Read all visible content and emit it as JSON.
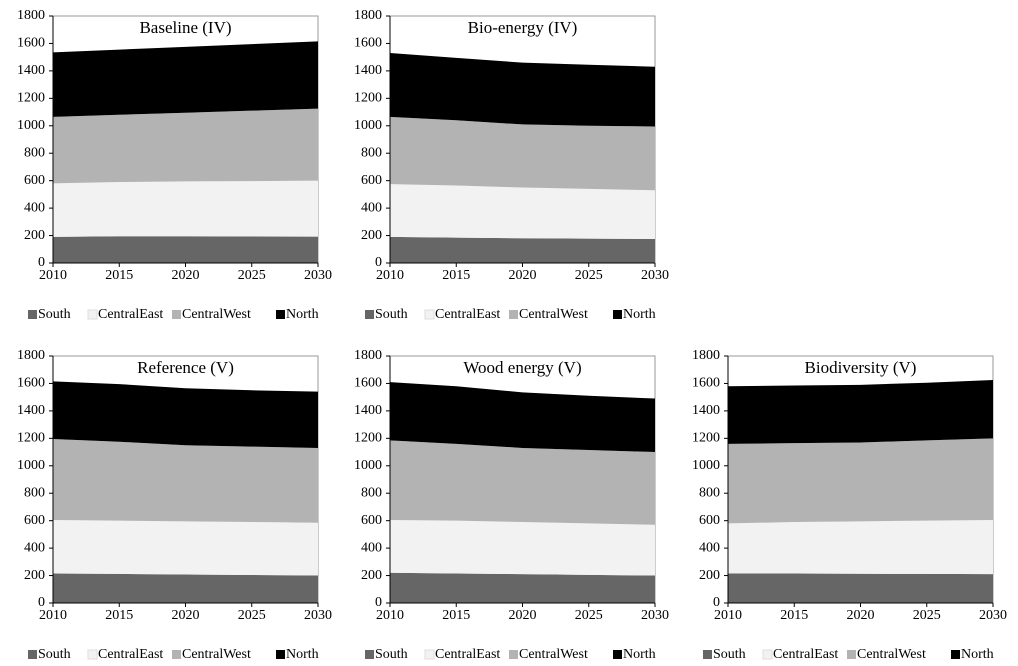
{
  "chart_data": [
    {
      "type": "area",
      "stacked": true,
      "title": "Baseline (IV)",
      "x": [
        2010,
        2015,
        2020,
        2025,
        2030
      ],
      "xlim": [
        2010,
        2030
      ],
      "xticks": [
        2010,
        2015,
        2020,
        2025,
        2030
      ],
      "ylim": [
        0,
        1800
      ],
      "yticks": [
        0,
        200,
        400,
        600,
        800,
        1000,
        1200,
        1400,
        1600,
        1800
      ],
      "grid": false,
      "series": [
        {
          "name": "South",
          "color": "#666666",
          "values": [
            190,
            195,
            195,
            193,
            192
          ]
        },
        {
          "name": "CentralEast",
          "color": "#f2f2f2",
          "values": [
            390,
            395,
            400,
            404,
            408
          ]
        },
        {
          "name": "CentralWest",
          "color": "#b3b3b3",
          "values": [
            485,
            490,
            500,
            513,
            525
          ]
        },
        {
          "name": "North",
          "color": "#000000",
          "values": [
            470,
            475,
            480,
            485,
            490
          ]
        }
      ]
    },
    {
      "type": "area",
      "stacked": true,
      "title": "Bio-energy (IV)",
      "x": [
        2010,
        2015,
        2020,
        2025,
        2030
      ],
      "xlim": [
        2010,
        2030
      ],
      "xticks": [
        2010,
        2015,
        2020,
        2025,
        2030
      ],
      "ylim": [
        0,
        1800
      ],
      "yticks": [
        0,
        200,
        400,
        600,
        800,
        1000,
        1200,
        1400,
        1600,
        1800
      ],
      "grid": false,
      "series": [
        {
          "name": "South",
          "color": "#666666",
          "values": [
            190,
            185,
            180,
            178,
            175
          ]
        },
        {
          "name": "CentralEast",
          "color": "#f2f2f2",
          "values": [
            385,
            380,
            370,
            362,
            355
          ]
        },
        {
          "name": "CentralWest",
          "color": "#b3b3b3",
          "values": [
            490,
            475,
            460,
            460,
            465
          ]
        },
        {
          "name": "North",
          "color": "#000000",
          "values": [
            465,
            455,
            450,
            445,
            435
          ]
        }
      ]
    },
    {
      "type": "area",
      "stacked": true,
      "title": "Reference (V)",
      "x": [
        2010,
        2015,
        2020,
        2025,
        2030
      ],
      "xlim": [
        2010,
        2030
      ],
      "xticks": [
        2010,
        2015,
        2020,
        2025,
        2030
      ],
      "ylim": [
        0,
        1800
      ],
      "yticks": [
        0,
        200,
        400,
        600,
        800,
        1000,
        1200,
        1400,
        1600,
        1800
      ],
      "grid": false,
      "series": [
        {
          "name": "South",
          "color": "#666666",
          "values": [
            215,
            212,
            208,
            204,
            200
          ]
        },
        {
          "name": "CentralEast",
          "color": "#f2f2f2",
          "values": [
            390,
            388,
            387,
            386,
            385
          ]
        },
        {
          "name": "CentralWest",
          "color": "#b3b3b3",
          "values": [
            590,
            575,
            555,
            550,
            545
          ]
        },
        {
          "name": "North",
          "color": "#000000",
          "values": [
            420,
            420,
            415,
            410,
            410
          ]
        }
      ]
    },
    {
      "type": "area",
      "stacked": true,
      "title": "Wood energy (V)",
      "x": [
        2010,
        2015,
        2020,
        2025,
        2030
      ],
      "xlim": [
        2010,
        2030
      ],
      "xticks": [
        2010,
        2015,
        2020,
        2025,
        2030
      ],
      "ylim": [
        0,
        1800
      ],
      "yticks": [
        0,
        200,
        400,
        600,
        800,
        1000,
        1200,
        1400,
        1600,
        1800
      ],
      "grid": false,
      "series": [
        {
          "name": "South",
          "color": "#666666",
          "values": [
            220,
            215,
            210,
            205,
            200
          ]
        },
        {
          "name": "CentralEast",
          "color": "#f2f2f2",
          "values": [
            385,
            385,
            380,
            375,
            370
          ]
        },
        {
          "name": "CentralWest",
          "color": "#b3b3b3",
          "values": [
            580,
            560,
            540,
            535,
            530
          ]
        },
        {
          "name": "North",
          "color": "#000000",
          "values": [
            425,
            420,
            405,
            395,
            390
          ]
        }
      ]
    },
    {
      "type": "area",
      "stacked": true,
      "title": "Biodiversity (V)",
      "x": [
        2010,
        2015,
        2020,
        2025,
        2030
      ],
      "xlim": [
        2010,
        2030
      ],
      "xticks": [
        2010,
        2015,
        2020,
        2025,
        2030
      ],
      "ylim": [
        0,
        1800
      ],
      "yticks": [
        0,
        200,
        400,
        600,
        800,
        1000,
        1200,
        1400,
        1600,
        1800
      ],
      "grid": false,
      "series": [
        {
          "name": "South",
          "color": "#666666",
          "values": [
            215,
            215,
            213,
            212,
            210
          ]
        },
        {
          "name": "CentralEast",
          "color": "#f2f2f2",
          "values": [
            365,
            375,
            382,
            388,
            395
          ]
        },
        {
          "name": "CentralWest",
          "color": "#b3b3b3",
          "values": [
            580,
            575,
            575,
            585,
            595
          ]
        },
        {
          "name": "North",
          "color": "#000000",
          "values": [
            420,
            420,
            420,
            420,
            425
          ]
        }
      ]
    }
  ]
}
